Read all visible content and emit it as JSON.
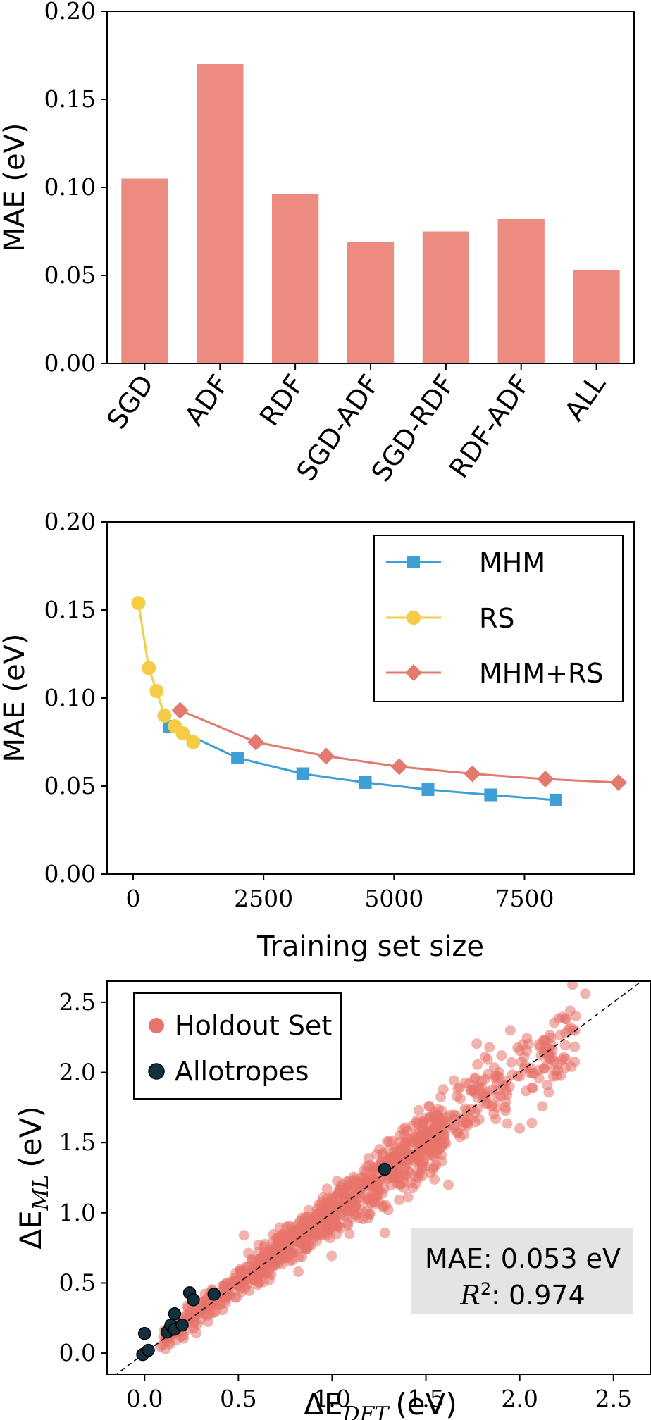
{
  "chart_data": [
    {
      "type": "bar",
      "categories": [
        "SGD",
        "ADF",
        "RDF",
        "SGD-ADF",
        "SGD-RDF",
        "RDF-ADF",
        "ALL"
      ],
      "values": [
        0.105,
        0.17,
        0.096,
        0.069,
        0.075,
        0.082,
        0.053
      ],
      "ylabel": "MAE (eV)",
      "ylim": [
        0,
        0.2
      ],
      "yticks": [
        "0.00",
        "0.05",
        "0.10",
        "0.15",
        "0.20"
      ],
      "bar_color": "#ec8b7f",
      "grid": false
    },
    {
      "type": "line",
      "xlabel": "Training set size",
      "ylabel": "MAE (eV)",
      "xlim": [
        -500,
        9600
      ],
      "ylim": [
        0,
        0.2
      ],
      "xticks": [
        "0",
        "2500",
        "5000",
        "7500"
      ],
      "yticks": [
        "0.00",
        "0.05",
        "0.10",
        "0.15",
        "0.20"
      ],
      "legend_position": "top-right",
      "series": [
        {
          "name": "MHM",
          "color": "#3d9fd6",
          "marker": "square",
          "x": [
            700,
            2000,
            3250,
            4450,
            5650,
            6850,
            8100
          ],
          "y": [
            0.084,
            0.066,
            0.057,
            0.052,
            0.048,
            0.045,
            0.042
          ]
        },
        {
          "name": "RS",
          "color": "#f6cb46",
          "marker": "circle",
          "x": [
            100,
            300,
            450,
            600,
            800,
            950,
            1150
          ],
          "y": [
            0.154,
            0.117,
            0.104,
            0.09,
            0.084,
            0.08,
            0.075
          ]
        },
        {
          "name": "MHM+RS",
          "color": "#e27a6f",
          "marker": "diamond",
          "x": [
            900,
            2350,
            3700,
            5100,
            6500,
            7900,
            9300
          ],
          "y": [
            0.093,
            0.075,
            0.067,
            0.061,
            0.057,
            0.054,
            0.052
          ]
        }
      ]
    },
    {
      "type": "scatter",
      "xlabel_symbol": "ΔE",
      "xlabel_subscript": "DFT",
      "xlabel_unit": "(eV)",
      "ylabel_symbol": "ΔE",
      "ylabel_subscript": "ML",
      "ylabel_unit": "(eV)",
      "xlim": [
        -0.2,
        2.7
      ],
      "ylim": [
        -0.15,
        2.65
      ],
      "xticks": [
        "0.0",
        "0.5",
        "1.0",
        "1.5",
        "2.0",
        "2.5"
      ],
      "yticks": [
        "0.0",
        "0.5",
        "1.0",
        "1.5",
        "2.0",
        "2.5"
      ],
      "legend_position": "top-left",
      "series": [
        {
          "name": "Holdout Set",
          "color": "#e8736a",
          "marker": "circle",
          "points_shown": "~1000 points along the y = x diagonal, x from about 0.05 to 2.35"
        },
        {
          "name": "Allotropes",
          "color": "#12303d",
          "marker": "circle",
          "x": [
            -0.01,
            0.0,
            0.02,
            0.12,
            0.14,
            0.16,
            0.16,
            0.2,
            0.24,
            0.26,
            0.37,
            1.28
          ],
          "y": [
            -0.01,
            0.14,
            0.02,
            0.15,
            0.2,
            0.28,
            0.17,
            0.2,
            0.43,
            0.38,
            0.42,
            1.31
          ]
        }
      ],
      "reference_line": "y = x (dashed)",
      "annotation": {
        "mae_text": "MAE: 0.053 eV",
        "r2_symbol": "R",
        "r2_exponent": "2",
        "r2_value": ": 0.974"
      }
    }
  ]
}
